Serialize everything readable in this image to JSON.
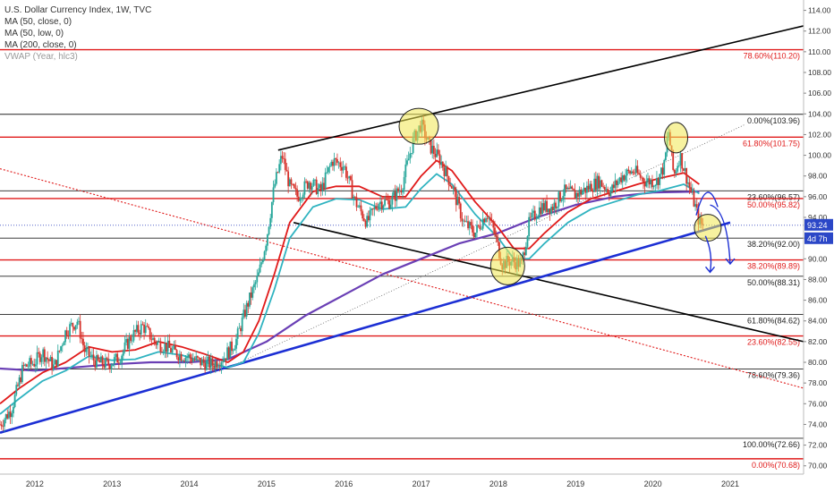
{
  "chart_data": {
    "type": "candlestick",
    "title": "U.S. Dollar Currency Index, 1W, TVC",
    "legend": [
      "MA (50, close, 0)",
      "MA (50, low, 0)",
      "MA (200, close, 0)",
      "VWAP (Year, hlc3)"
    ],
    "x_ticks": [
      "2012",
      "2013",
      "2014",
      "2015",
      "2016",
      "2017",
      "2018",
      "2019",
      "2020",
      "2021"
    ],
    "y_ticks": [
      "70.00",
      "72.00",
      "74.00",
      "76.00",
      "78.00",
      "80.00",
      "82.00",
      "84.00",
      "86.00",
      "88.00",
      "90.00",
      "92.00",
      "94.00",
      "96.00",
      "98.00",
      "100.00",
      "102.00",
      "104.00",
      "106.00",
      "108.00",
      "110.00",
      "112.00",
      "114.00"
    ],
    "ylim": [
      69.2,
      115
    ],
    "xlim": [
      2011.55,
      2021.95
    ],
    "last_price": "93.24",
    "countdown": "4d 7h",
    "fib_levels": [
      {
        "label": "78.60%(110.20)",
        "value": 110.2,
        "color": "#e01a1a"
      },
      {
        "label": "0.00%(103.96)",
        "value": 103.96,
        "color": "#222222"
      },
      {
        "label": "61.80%(101.75)",
        "value": 101.75,
        "color": "#e01a1a"
      },
      {
        "label": "23.60%(96.57)",
        "value": 96.57,
        "color": "#222222"
      },
      {
        "label": "50.00%(95.82)",
        "value": 95.82,
        "color": "#e01a1a"
      },
      {
        "label": "38.20%(92.00)",
        "value": 92.0,
        "color": "#222222"
      },
      {
        "label": "38.20%(89.89)",
        "value": 89.89,
        "color": "#e01a1a"
      },
      {
        "label": "50.00%(88.31)",
        "value": 88.31,
        "color": "#222222"
      },
      {
        "label": "61.80%(84.62)",
        "value": 84.62,
        "color": "#222222"
      },
      {
        "label": "23.60%(82.55)",
        "value": 82.55,
        "color": "#e01a1a"
      },
      {
        "label": "78.60%(79.36)",
        "value": 79.36,
        "color": "#222222"
      },
      {
        "label": "100.00%(72.66)",
        "value": 72.66,
        "color": "#222222"
      },
      {
        "label": "0.00%(70.68)",
        "value": 70.68,
        "color": "#e01a1a"
      }
    ],
    "price_path": [
      [
        2011.55,
        74.0
      ],
      [
        2011.7,
        75.5
      ],
      [
        2011.85,
        79.5
      ],
      [
        2012.0,
        80.0
      ],
      [
        2012.1,
        81.0
      ],
      [
        2012.25,
        79.5
      ],
      [
        2012.4,
        83.0
      ],
      [
        2012.55,
        84.0
      ],
      [
        2012.65,
        81.0
      ],
      [
        2012.8,
        80.0
      ],
      [
        2012.95,
        79.8
      ],
      [
        2013.1,
        80.5
      ],
      [
        2013.25,
        82.5
      ],
      [
        2013.4,
        83.5
      ],
      [
        2013.55,
        82.0
      ],
      [
        2013.7,
        81.5
      ],
      [
        2013.85,
        80.8
      ],
      [
        2014.0,
        80.5
      ],
      [
        2014.15,
        80.0
      ],
      [
        2014.3,
        79.8
      ],
      [
        2014.45,
        80.5
      ],
      [
        2014.6,
        82.0
      ],
      [
        2014.75,
        85.5
      ],
      [
        2014.9,
        88.5
      ],
      [
        2015.0,
        92.0
      ],
      [
        2015.1,
        97.0
      ],
      [
        2015.2,
        100.0
      ],
      [
        2015.3,
        97.0
      ],
      [
        2015.4,
        96.0
      ],
      [
        2015.55,
        97.5
      ],
      [
        2015.7,
        96.5
      ],
      [
        2015.85,
        99.5
      ],
      [
        2016.0,
        99.0
      ],
      [
        2016.15,
        95.5
      ],
      [
        2016.3,
        93.5
      ],
      [
        2016.45,
        95.5
      ],
      [
        2016.6,
        95.5
      ],
      [
        2016.75,
        97.0
      ],
      [
        2016.9,
        101.5
      ],
      [
        2017.0,
        103.0
      ],
      [
        2017.1,
        101.0
      ],
      [
        2017.25,
        99.5
      ],
      [
        2017.4,
        97.0
      ],
      [
        2017.55,
        93.5
      ],
      [
        2017.7,
        92.5
      ],
      [
        2017.85,
        94.5
      ],
      [
        2017.95,
        92.5
      ],
      [
        2018.05,
        89.5
      ],
      [
        2018.15,
        89.8
      ],
      [
        2018.3,
        89.5
      ],
      [
        2018.4,
        93.5
      ],
      [
        2018.55,
        95.0
      ],
      [
        2018.7,
        95.0
      ],
      [
        2018.85,
        96.5
      ],
      [
        2019.0,
        96.2
      ],
      [
        2019.15,
        96.8
      ],
      [
        2019.3,
        97.5
      ],
      [
        2019.45,
        96.5
      ],
      [
        2019.6,
        98.0
      ],
      [
        2019.75,
        98.5
      ],
      [
        2019.9,
        97.5
      ],
      [
        2020.05,
        97.5
      ],
      [
        2020.15,
        99.0
      ],
      [
        2020.2,
        102.5
      ],
      [
        2020.27,
        98.0
      ],
      [
        2020.35,
        100.0
      ],
      [
        2020.45,
        97.5
      ],
      [
        2020.55,
        95.0
      ],
      [
        2020.6,
        93.5
      ],
      [
        2020.65,
        93.2
      ]
    ],
    "ma50_close": [
      [
        2011.55,
        76.0
      ],
      [
        2011.8,
        77.5
      ],
      [
        2012.1,
        79.0
      ],
      [
        2012.4,
        80.0
      ],
      [
        2012.7,
        81.5
      ],
      [
        2013.0,
        81.0
      ],
      [
        2013.3,
        81.2
      ],
      [
        2013.6,
        82.0
      ],
      [
        2013.9,
        81.5
      ],
      [
        2014.2,
        80.8
      ],
      [
        2014.5,
        80.0
      ],
      [
        2014.7,
        81.0
      ],
      [
        2014.9,
        84.0
      ],
      [
        2015.1,
        88.5
      ],
      [
        2015.3,
        93.5
      ],
      [
        2015.6,
        96.5
      ],
      [
        2015.9,
        97.0
      ],
      [
        2016.2,
        97.0
      ],
      [
        2016.5,
        96.0
      ],
      [
        2016.8,
        96.0
      ],
      [
        2017.0,
        98.0
      ],
      [
        2017.2,
        99.5
      ],
      [
        2017.4,
        98.5
      ],
      [
        2017.7,
        95.5
      ],
      [
        2018.0,
        93.0
      ],
      [
        2018.2,
        91.0
      ],
      [
        2018.4,
        91.0
      ],
      [
        2018.6,
        92.5
      ],
      [
        2018.9,
        94.5
      ],
      [
        2019.2,
        95.8
      ],
      [
        2019.5,
        96.5
      ],
      [
        2019.8,
        97.2
      ],
      [
        2020.1,
        97.8
      ],
      [
        2020.4,
        98.3
      ],
      [
        2020.6,
        97.2
      ]
    ],
    "ma50_low": [
      [
        2011.55,
        75.0
      ],
      [
        2011.8,
        76.5
      ],
      [
        2012.1,
        78.2
      ],
      [
        2012.4,
        79.2
      ],
      [
        2012.7,
        80.6
      ],
      [
        2013.0,
        80.2
      ],
      [
        2013.3,
        80.3
      ],
      [
        2013.6,
        81.0
      ],
      [
        2013.9,
        80.7
      ],
      [
        2014.2,
        80.0
      ],
      [
        2014.5,
        79.5
      ],
      [
        2014.7,
        80.0
      ],
      [
        2014.9,
        82.8
      ],
      [
        2015.1,
        87.0
      ],
      [
        2015.3,
        92.0
      ],
      [
        2015.6,
        95.0
      ],
      [
        2015.9,
        95.8
      ],
      [
        2016.2,
        95.7
      ],
      [
        2016.5,
        94.8
      ],
      [
        2016.8,
        95.0
      ],
      [
        2017.0,
        96.8
      ],
      [
        2017.2,
        98.2
      ],
      [
        2017.4,
        97.2
      ],
      [
        2017.7,
        94.3
      ],
      [
        2018.0,
        92.0
      ],
      [
        2018.2,
        90.0
      ],
      [
        2018.4,
        90.0
      ],
      [
        2018.6,
        91.5
      ],
      [
        2018.9,
        93.5
      ],
      [
        2019.2,
        94.8
      ],
      [
        2019.5,
        95.5
      ],
      [
        2019.8,
        96.2
      ],
      [
        2020.1,
        96.6
      ],
      [
        2020.4,
        97.2
      ],
      [
        2020.6,
        96.3
      ]
    ],
    "ma200_close": [
      [
        2011.55,
        79.4
      ],
      [
        2012.0,
        79.2
      ],
      [
        2012.5,
        79.5
      ],
      [
        2013.0,
        79.8
      ],
      [
        2013.5,
        80.0
      ],
      [
        2014.0,
        80.0
      ],
      [
        2014.5,
        80.3
      ],
      [
        2015.0,
        82.0
      ],
      [
        2015.5,
        84.5
      ],
      [
        2016.0,
        86.5
      ],
      [
        2016.5,
        88.5
      ],
      [
        2017.0,
        90.0
      ],
      [
        2017.5,
        91.5
      ],
      [
        2018.0,
        92.5
      ],
      [
        2018.5,
        94.0
      ],
      [
        2019.0,
        95.2
      ],
      [
        2019.5,
        96.0
      ],
      [
        2020.0,
        96.4
      ],
      [
        2020.6,
        96.5
      ]
    ],
    "annotations": [
      {
        "type": "trendline",
        "from": [
          2015.15,
          100.5
        ],
        "to": [
          2021.95,
          112.5
        ],
        "color": "#000000"
      },
      {
        "type": "trendline",
        "from": [
          2015.35,
          93.5
        ],
        "to": [
          2021.95,
          82.0
        ],
        "color": "#000000"
      },
      {
        "type": "trendline",
        "from": [
          2011.55,
          73.2
        ],
        "to": [
          2021.0,
          93.5
        ],
        "color": "#1c2fd4"
      },
      {
        "type": "dotted",
        "from": [
          2011.55,
          98.7
        ],
        "to": [
          2021.95,
          77.5
        ],
        "color": "#e01a1a"
      },
      {
        "type": "dotted",
        "from": [
          2014.6,
          79.8
        ],
        "to": [
          2021.2,
          103.0
        ],
        "color": "#666666"
      }
    ]
  }
}
